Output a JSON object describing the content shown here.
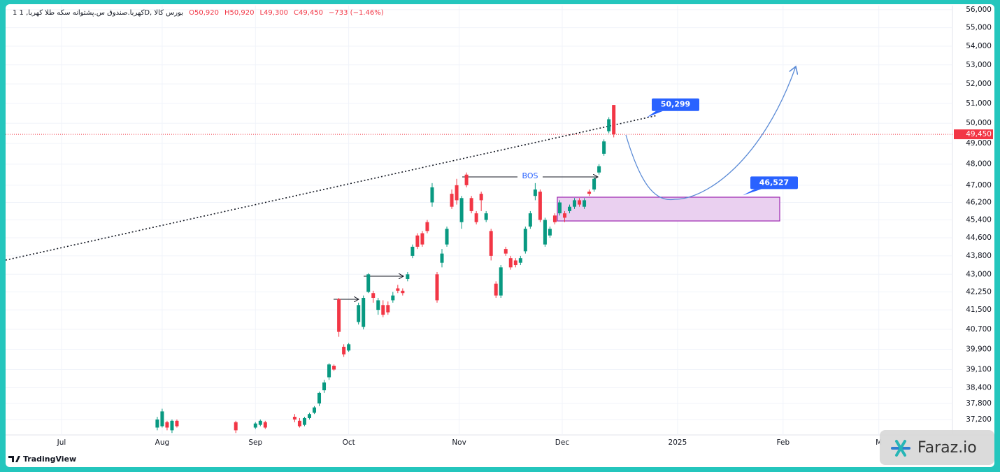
{
  "chart_data": {
    "type": "candlestick",
    "header": {
      "symbol": "1 کهربا.صندوق س.پشتوانه سکه طلا کهربا, 1D, بورس کالا",
      "values": [
        "O50,920",
        "H50,920",
        "L49,300",
        "C49,450",
        "−733 (−1.46%)"
      ]
    },
    "log_scale": true,
    "grid": true,
    "up_color": "#089981",
    "down_color": "#f23645",
    "x": [
      32,
      33,
      34,
      35,
      36,
      48,
      52,
      53,
      54,
      60,
      61,
      62,
      63,
      64,
      65,
      66,
      67,
      68,
      69,
      70,
      71,
      73,
      74,
      75,
      76,
      77,
      78,
      79,
      80,
      81,
      82,
      83,
      84,
      85,
      86,
      87,
      88,
      89,
      90,
      91,
      92,
      93,
      94,
      95,
      96,
      97,
      98,
      99,
      100,
      101,
      102,
      103,
      104,
      105,
      106,
      107,
      108,
      109,
      110,
      111,
      112,
      113,
      114,
      115,
      116,
      117,
      118,
      119,
      120,
      121,
      122,
      123,
      124,
      125
    ],
    "open": [
      36900,
      36950,
      37100,
      36800,
      37150,
      37100,
      36900,
      37000,
      37100,
      37300,
      37150,
      37000,
      37250,
      37450,
      37800,
      38300,
      38800,
      39250,
      41950,
      40000,
      39850,
      41000,
      40800,
      42250,
      42200,
      41500,
      41700,
      41700,
      41900,
      42400,
      42300,
      42800,
      43800,
      44700,
      44800,
      45300,
      46200,
      43000,
      43500,
      44300,
      46600,
      47000,
      45300,
      47500,
      46400,
      45700,
      46600,
      45400,
      44900,
      42600,
      42100,
      44100,
      43700,
      43600,
      43500,
      44000,
      45100,
      46500,
      46700,
      44300,
      44700,
      45600,
      45700,
      45700,
      45800,
      46000,
      46300,
      46000,
      46700,
      46800,
      47600,
      48500,
      49600,
      50920
    ],
    "high": [
      37300,
      37600,
      37150,
      37200,
      37200,
      37150,
      37100,
      37200,
      37150,
      37400,
      37250,
      37300,
      37450,
      37700,
      38250,
      38700,
      39350,
      39300,
      42000,
      40100,
      40150,
      41800,
      42100,
      43050,
      42300,
      42000,
      41900,
      41850,
      42250,
      42550,
      42400,
      43100,
      44300,
      44800,
      44900,
      45400,
      47100,
      43100,
      44100,
      45100,
      46800,
      47300,
      46500,
      47600,
      46500,
      45800,
      46700,
      45800,
      45000,
      42700,
      43400,
      44200,
      43800,
      43700,
      43800,
      45100,
      45800,
      47100,
      46800,
      45500,
      45100,
      45700,
      46300,
      45800,
      46100,
      46400,
      46400,
      46400,
      46800,
      47400,
      48000,
      49200,
      50300,
      50920
    ],
    "low": [
      36800,
      36900,
      36800,
      36700,
      36900,
      36700,
      36850,
      36950,
      36850,
      37100,
      36900,
      36950,
      37200,
      37400,
      37700,
      38200,
      38700,
      39050,
      40400,
      39600,
      39800,
      40900,
      40700,
      42200,
      41800,
      41300,
      41200,
      41300,
      41800,
      42200,
      42100,
      42700,
      43700,
      44100,
      44200,
      44800,
      46000,
      41800,
      43300,
      44200,
      45900,
      46100,
      45000,
      46900,
      45700,
      45200,
      45800,
      45300,
      43600,
      42000,
      42000,
      43800,
      43200,
      43300,
      43400,
      43900,
      45000,
      46300,
      45300,
      44200,
      44600,
      45200,
      45600,
      45300,
      45700,
      45900,
      46000,
      45900,
      46500,
      46700,
      47500,
      48400,
      49500,
      49300
    ],
    "close": [
      37200,
      37500,
      36900,
      37150,
      36950,
      36800,
      37050,
      37150,
      36900,
      37200,
      36950,
      37250,
      37400,
      37650,
      38200,
      38600,
      39300,
      39100,
      40600,
      39700,
      40100,
      41700,
      42000,
      43000,
      42000,
      41900,
      41300,
      41400,
      42100,
      42300,
      42200,
      43000,
      44200,
      44200,
      44300,
      44900,
      46900,
      41900,
      43900,
      45000,
      46000,
      46300,
      46400,
      47000,
      45800,
      45300,
      46300,
      45700,
      43800,
      42100,
      43300,
      43900,
      43300,
      43400,
      43700,
      45000,
      45700,
      46800,
      45400,
      45400,
      45000,
      45300,
      46200,
      45500,
      46000,
      46300,
      46100,
      46300,
      46600,
      47300,
      47900,
      49100,
      50200,
      49450
    ],
    "xlim": [
      1.1,
      194
    ],
    "xticks": [
      {
        "value": 12.5,
        "label": "Jul"
      },
      {
        "value": 33,
        "label": "Aug"
      },
      {
        "value": 52,
        "label": "Sep"
      },
      {
        "value": 71,
        "label": "Oct"
      },
      {
        "value": 93.5,
        "label": "Nov"
      },
      {
        "value": 114.5,
        "label": "Dec"
      },
      {
        "value": 138,
        "label": "2025"
      },
      {
        "value": 159.5,
        "label": "Feb"
      },
      {
        "value": 179,
        "label": "M"
      }
    ],
    "ylim": [
      36630,
      56230
    ],
    "yticks": [
      {
        "value": 56000,
        "label": "56,000"
      },
      {
        "value": 55000,
        "label": "55,000"
      },
      {
        "value": 54000,
        "label": "54,000"
      },
      {
        "value": 53000,
        "label": "53,000"
      },
      {
        "value": 52000,
        "label": "52,000"
      },
      {
        "value": 51000,
        "label": "51,000"
      },
      {
        "value": 50000,
        "label": "50,000"
      },
      {
        "value": 49000,
        "label": "49,000"
      },
      {
        "value": 48000,
        "label": "48,000"
      },
      {
        "value": 47000,
        "label": "47,000"
      },
      {
        "value": 46200,
        "label": "46,200"
      },
      {
        "value": 45400,
        "label": "45,400"
      },
      {
        "value": 44600,
        "label": "44,600"
      },
      {
        "value": 43800,
        "label": "43,800"
      },
      {
        "value": 43000,
        "label": "43,000"
      },
      {
        "value": 42250,
        "label": "42,250"
      },
      {
        "value": 41500,
        "label": "41,500"
      },
      {
        "value": 40700,
        "label": "40,700"
      },
      {
        "value": 39900,
        "label": "39,900"
      },
      {
        "value": 39100,
        "label": "39,100"
      },
      {
        "value": 38400,
        "label": "38,400"
      },
      {
        "value": 37800,
        "label": "37,800"
      },
      {
        "value": 37200,
        "label": "37,200"
      }
    ],
    "last_price": {
      "value": 49450,
      "label": "49,450",
      "color": "#f23645"
    },
    "annotations": [
      {
        "value": 50299,
        "label": "50,299"
      },
      {
        "value": 46527,
        "label": "46,527"
      }
    ],
    "bos_label": "BOS",
    "footer": "TradingView",
    "watermark": "Faraz.io"
  }
}
